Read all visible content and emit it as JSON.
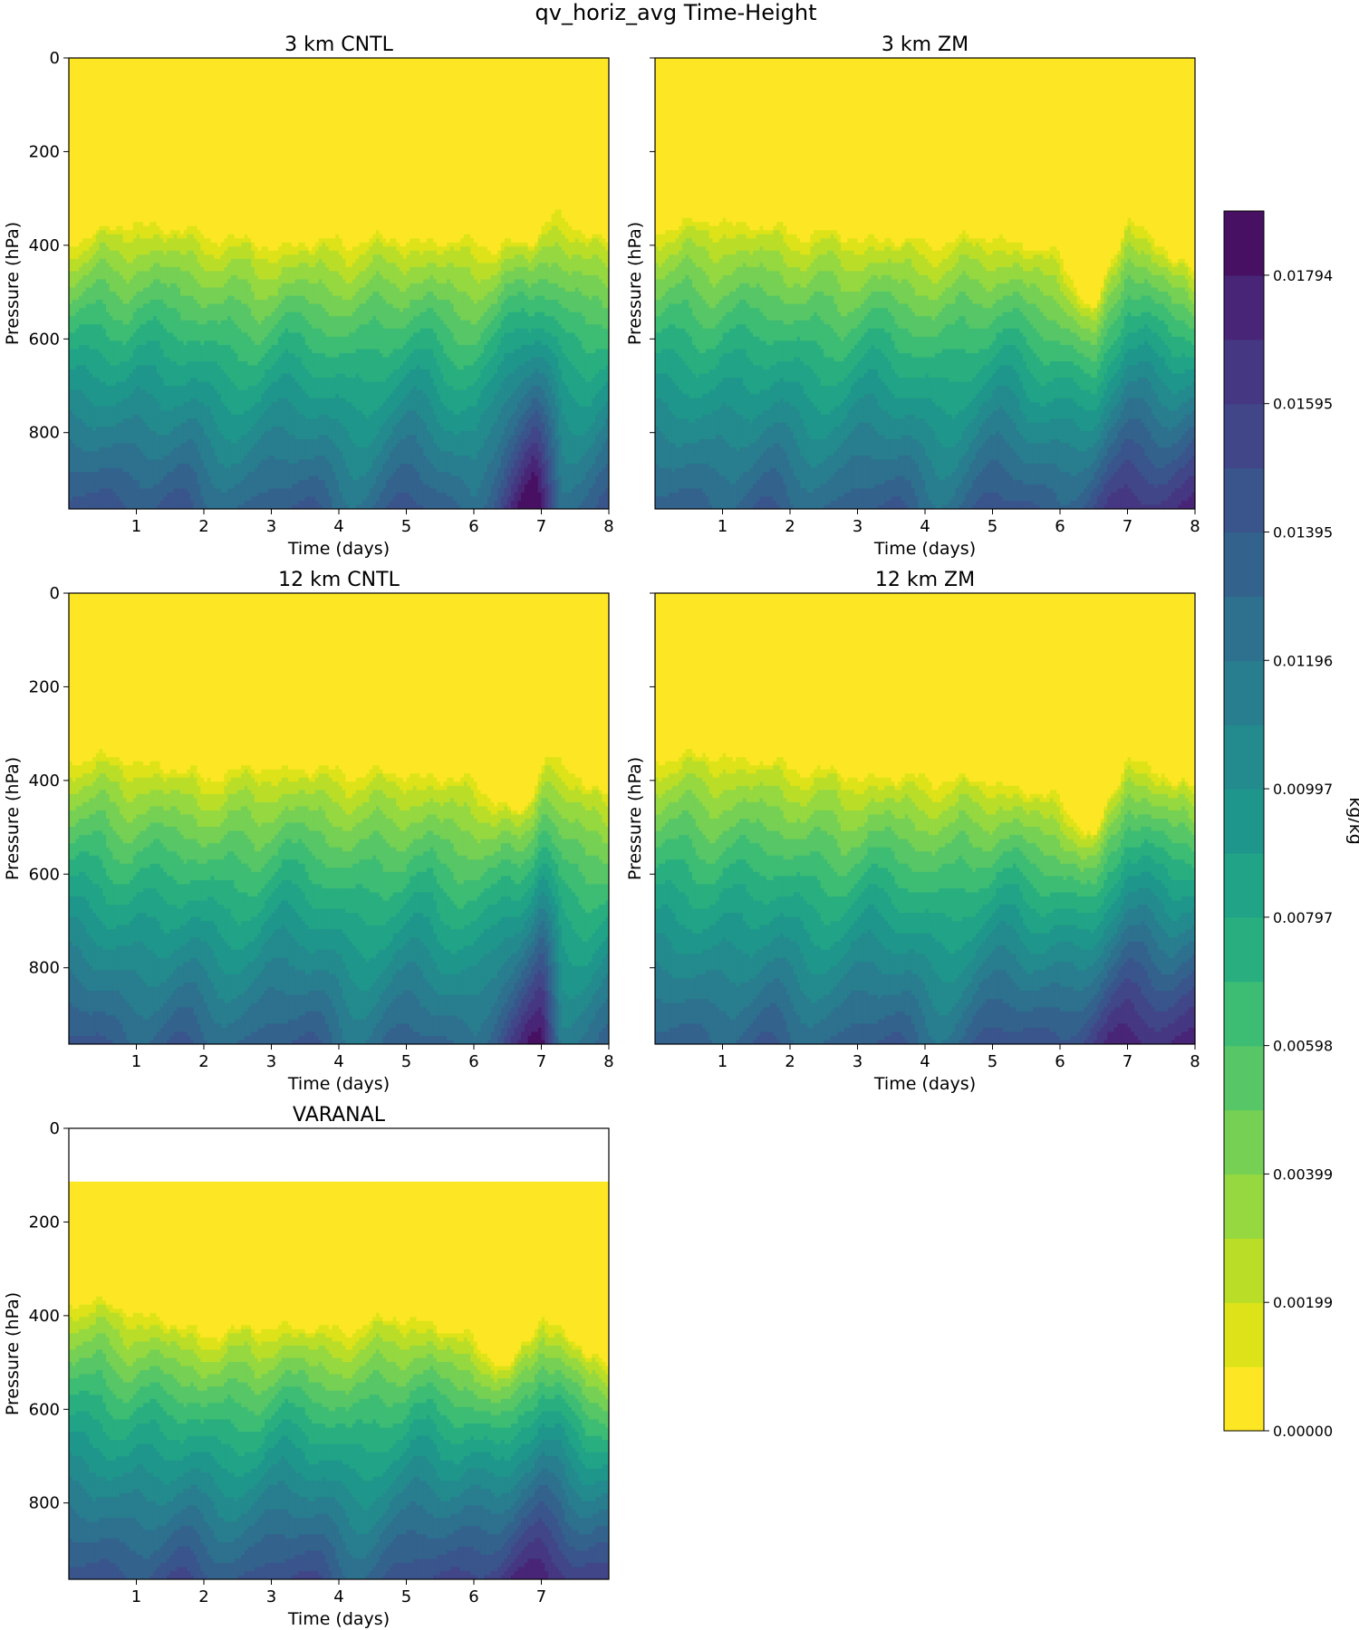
{
  "figure": {
    "suptitle": "qv_horiz_avg Time-Height"
  },
  "colors": {
    "viridis": [
      "#fde725",
      "#dde318",
      "#bade28",
      "#95d840",
      "#75d054",
      "#56c667",
      "#3dbc74",
      "#29af7f",
      "#20a386",
      "#1f968b",
      "#238a8d",
      "#287d8e",
      "#2d718e",
      "#33638d",
      "#39558c",
      "#404688",
      "#453781",
      "#482576",
      "#471063",
      "#440154"
    ]
  },
  "chart_data": [
    {
      "type": "contourf",
      "id": "p0",
      "title": "3 km CNTL",
      "xlabel": "Time (days)",
      "ylabel": "Pressure (hPa)",
      "xlim": [
        0,
        8
      ],
      "ylim": [
        963,
        0
      ],
      "xticks": [
        "1",
        "2",
        "3",
        "4",
        "5",
        "6",
        "7",
        "8"
      ],
      "yticks": [
        "0",
        "200",
        "400",
        "600",
        "800"
      ],
      "y_tick_values": [
        0,
        200,
        400,
        600,
        800
      ],
      "moist_top_hPa": [
        [
          0,
          390
        ],
        [
          1,
          350
        ],
        [
          2,
          375
        ],
        [
          3,
          400
        ],
        [
          4,
          390
        ],
        [
          5,
          385
        ],
        [
          6,
          395
        ],
        [
          6.8,
          400
        ],
        [
          7.2,
          330
        ],
        [
          8,
          400
        ]
      ],
      "surface_levels": [
        [
          0,
          14
        ],
        [
          1,
          15
        ],
        [
          2,
          13
        ],
        [
          3,
          14
        ],
        [
          4,
          13
        ],
        [
          5,
          14
        ],
        [
          6,
          13
        ],
        [
          6.9,
          19
        ],
        [
          7.3,
          13
        ],
        [
          8,
          15
        ]
      ],
      "pressure_top_hPa": 0
    },
    {
      "type": "contourf",
      "id": "p1",
      "title": "3 km ZM",
      "xlabel": "Time (days)",
      "ylabel": "Pressure (hPa)",
      "xlim": [
        0,
        8
      ],
      "ylim": [
        963,
        0
      ],
      "xticks": [
        "1",
        "2",
        "3",
        "4",
        "5",
        "6",
        "7",
        "8"
      ],
      "yticks": [],
      "y_tick_values": [
        0,
        200,
        400,
        600,
        800
      ],
      "moist_top_hPa": [
        [
          0,
          360
        ],
        [
          1,
          345
        ],
        [
          2,
          370
        ],
        [
          3,
          380
        ],
        [
          4,
          395
        ],
        [
          5,
          380
        ],
        [
          6,
          420
        ],
        [
          6.5,
          550
        ],
        [
          7,
          340
        ],
        [
          8,
          460
        ]
      ],
      "surface_levels": [
        [
          0,
          13
        ],
        [
          1,
          14
        ],
        [
          2,
          13
        ],
        [
          3,
          14
        ],
        [
          4,
          13
        ],
        [
          5,
          14
        ],
        [
          6,
          14
        ],
        [
          7,
          16
        ],
        [
          8,
          18
        ]
      ],
      "pressure_top_hPa": 0
    },
    {
      "type": "contourf",
      "id": "p2",
      "title": "12 km CNTL",
      "xlabel": "Time (days)",
      "ylabel": "Pressure (hPa)",
      "xlim": [
        0,
        8
      ],
      "ylim": [
        963,
        0
      ],
      "xticks": [
        "1",
        "2",
        "3",
        "4",
        "5",
        "6",
        "7",
        "8"
      ],
      "yticks": [
        "0",
        "200",
        "400",
        "600",
        "800"
      ],
      "y_tick_values": [
        0,
        200,
        400,
        600,
        800
      ],
      "moist_top_hPa": [
        [
          0,
          350
        ],
        [
          1,
          355
        ],
        [
          2,
          390
        ],
        [
          3,
          370
        ],
        [
          4,
          380
        ],
        [
          5,
          385
        ],
        [
          6,
          400
        ],
        [
          6.7,
          480
        ],
        [
          7.1,
          340
        ],
        [
          8,
          440
        ]
      ],
      "surface_levels": [
        [
          0,
          14
        ],
        [
          1,
          14
        ],
        [
          2,
          13
        ],
        [
          3,
          14
        ],
        [
          4,
          13
        ],
        [
          5,
          13
        ],
        [
          6,
          13
        ],
        [
          7,
          18
        ],
        [
          7.3,
          12
        ],
        [
          8,
          14
        ]
      ],
      "pressure_top_hPa": 0
    },
    {
      "type": "contourf",
      "id": "p3",
      "title": "12 km ZM",
      "xlabel": "Time (days)",
      "ylabel": "Pressure (hPa)",
      "xlim": [
        0,
        8
      ],
      "ylim": [
        963,
        0
      ],
      "xticks": [
        "1",
        "2",
        "3",
        "4",
        "5",
        "6",
        "7",
        "8"
      ],
      "yticks": [],
      "y_tick_values": [
        0,
        200,
        400,
        600,
        800
      ],
      "moist_top_hPa": [
        [
          0,
          350
        ],
        [
          1,
          345
        ],
        [
          2,
          370
        ],
        [
          3,
          390
        ],
        [
          4,
          395
        ],
        [
          5,
          400
        ],
        [
          6,
          440
        ],
        [
          6.5,
          530
        ],
        [
          7,
          350
        ],
        [
          8,
          420
        ]
      ],
      "surface_levels": [
        [
          0,
          13
        ],
        [
          1,
          14
        ],
        [
          2,
          13
        ],
        [
          3,
          14
        ],
        [
          4,
          13
        ],
        [
          5,
          14
        ],
        [
          6,
          15
        ],
        [
          7,
          17
        ],
        [
          8,
          18
        ]
      ],
      "pressure_top_hPa": 0
    },
    {
      "type": "contourf",
      "id": "p4",
      "title": "VARANAL",
      "xlabel": "Time (days)",
      "ylabel": "Pressure (hPa)",
      "xlim": [
        0,
        8
      ],
      "ylim": [
        963,
        0
      ],
      "xticks": [
        "1",
        "2",
        "3",
        "4",
        "5",
        "6",
        "7"
      ],
      "yticks": [
        "0",
        "200",
        "400",
        "600",
        "800"
      ],
      "y_tick_values": [
        0,
        200,
        400,
        600,
        800
      ],
      "moist_top_hPa": [
        [
          0,
          360
        ],
        [
          1,
          390
        ],
        [
          2,
          440
        ],
        [
          3,
          420
        ],
        [
          4,
          430
        ],
        [
          5,
          400
        ],
        [
          6,
          450
        ],
        [
          6.5,
          520
        ],
        [
          7,
          400
        ],
        [
          8,
          510
        ]
      ],
      "surface_levels": [
        [
          0,
          14
        ],
        [
          1,
          15
        ],
        [
          2,
          14
        ],
        [
          3,
          15
        ],
        [
          4,
          14
        ],
        [
          5,
          14
        ],
        [
          6,
          16
        ],
        [
          7,
          17
        ],
        [
          8,
          16
        ]
      ],
      "pressure_top_hPa": 115
    }
  ],
  "colorbar": {
    "label": "kg/kg",
    "ticks": [
      "0.00000",
      "0.00199",
      "0.00399",
      "0.00598",
      "0.00797",
      "0.00997",
      "0.01196",
      "0.01395",
      "0.01595",
      "0.01794"
    ],
    "tick_levels": [
      0,
      2,
      4,
      6,
      8,
      10,
      12,
      14,
      16,
      18
    ],
    "n_levels": 19,
    "vmin": 0.0,
    "vmax": 0.01893
  }
}
